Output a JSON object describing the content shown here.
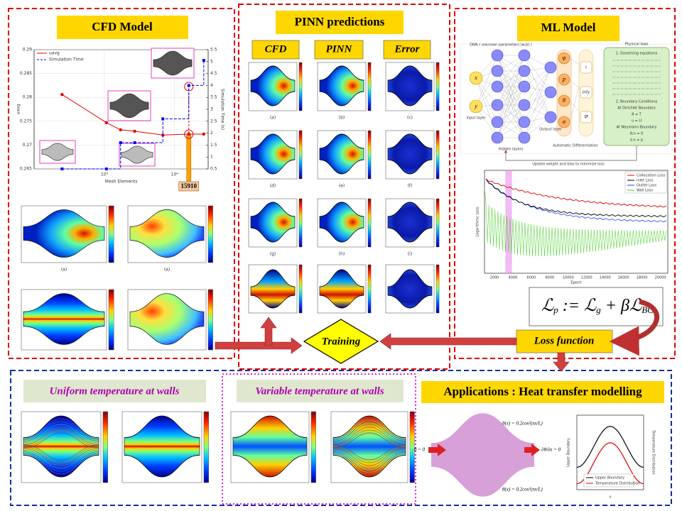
{
  "cfd_model": {
    "title": "CFD Model",
    "plot": {
      "xlabel": "Mesh Elements",
      "ylabel": "uavg",
      "y2label": "Simulation Time (s)",
      "xlim": [
        100,
        30000
      ],
      "log_x": true,
      "xticks": [
        {
          "value": 1000,
          "label": "10³"
        },
        {
          "value": 10000,
          "label": "10⁴"
        }
      ],
      "ylim": [
        0.265,
        0.29
      ],
      "yticks": [
        0.265,
        0.27,
        0.275,
        0.28,
        0.285,
        0.29
      ],
      "y2lim": [
        0.5,
        5.5
      ],
      "y2ticks": [
        0.5,
        1,
        1.5,
        2,
        2.5,
        3,
        3.5,
        4,
        4.5,
        5,
        5.5
      ],
      "grid": true,
      "legend": "upper left",
      "x": [
        250,
        1070,
        1700,
        2700,
        6800,
        15910,
        26000
      ],
      "series": [
        {
          "name": "uavg",
          "color": "#e00000",
          "values": [
            0.2806,
            0.2747,
            0.2732,
            0.2729,
            0.2721,
            0.2723,
            0.2723
          ]
        },
        {
          "name": "Simulation Time",
          "color": "#0000ff",
          "axis": "y2",
          "values": [
            0.5,
            0.5,
            1.6,
            1.6,
            2.6,
            4,
            5.05
          ]
        }
      ],
      "callout": {
        "value": 15910,
        "label": "15910"
      }
    },
    "panel_labels": [
      "(a)",
      "(a)"
    ]
  },
  "pinn": {
    "title": "PINN predictions",
    "columns": [
      "CFD",
      "PINN",
      "Error"
    ],
    "panel_labels": [
      "(a)",
      "(b)",
      "(c)",
      "(d)",
      "(e)",
      "(f)",
      "(g)",
      "(h)",
      "(i)"
    ]
  },
  "ml_model": {
    "title": "ML Model",
    "network": {
      "caption": "DNN ( unknown parameters (w,b) )",
      "inputs": [
        "x",
        "y"
      ],
      "outputs": [
        "ψ",
        "p",
        "θ",
        "σ"
      ],
      "derivatives": [
        "τ",
        "∂/∂y",
        "∇²"
      ],
      "input_layer": "Input layer",
      "hidden_layers": "Hidden layers",
      "output_layer": "Output layer",
      "autodiff": "Automatic Differentiation",
      "physical_laws": "Physical laws",
      "laws": [
        "1. Governing equations",
        "2. Boundary Conditions",
        "At Dirichlet Boundary",
        "θ = T",
        "u = U",
        "At Neumann Boundary",
        "θ,n = 0",
        "σ.n = p"
      ],
      "update": "Update weight and bias to minimize loss"
    },
    "loss_plot": {
      "xlabel": "Epoch",
      "ylabel": "Logarithmic Loss",
      "xticks": [
        "2000",
        "4000",
        "6000",
        "8000",
        "10000",
        "12000",
        "14000",
        "16000",
        "18000",
        "20000"
      ],
      "legend": [
        "Collocation Loss",
        "Inlet Loss",
        "Outlet Loss",
        "Wall Loss"
      ],
      "legend_colors": [
        "#e00000",
        "#000000",
        "#2040ff",
        "#40d020"
      ]
    }
  },
  "training": "Training",
  "loss_function": "Loss function",
  "loss_equation": [
    "ℒ",
    "p",
    " := ℒ",
    "g",
    " + βℒ",
    "BC"
  ],
  "bottom": {
    "uniform": "Uniform temperature at walls",
    "variable": "Variable temperature at walls",
    "applications": "Applications : Heat transfer modelling",
    "app_texts": {
      "inlet": "θ = 0",
      "top_bc": "θ(x) = 0.2cos²(πx/L)",
      "bottom_bc": "θ(x) = 0.2cos²(πx/L)",
      "outlet": "∂θ/∂x = 0",
      "ylabel": "Upper Boundary",
      "y2label": "Temperature Distribution",
      "xlabel": "x",
      "legend": [
        "Upper Boundary",
        "Temperature Distribution"
      ]
    }
  }
}
